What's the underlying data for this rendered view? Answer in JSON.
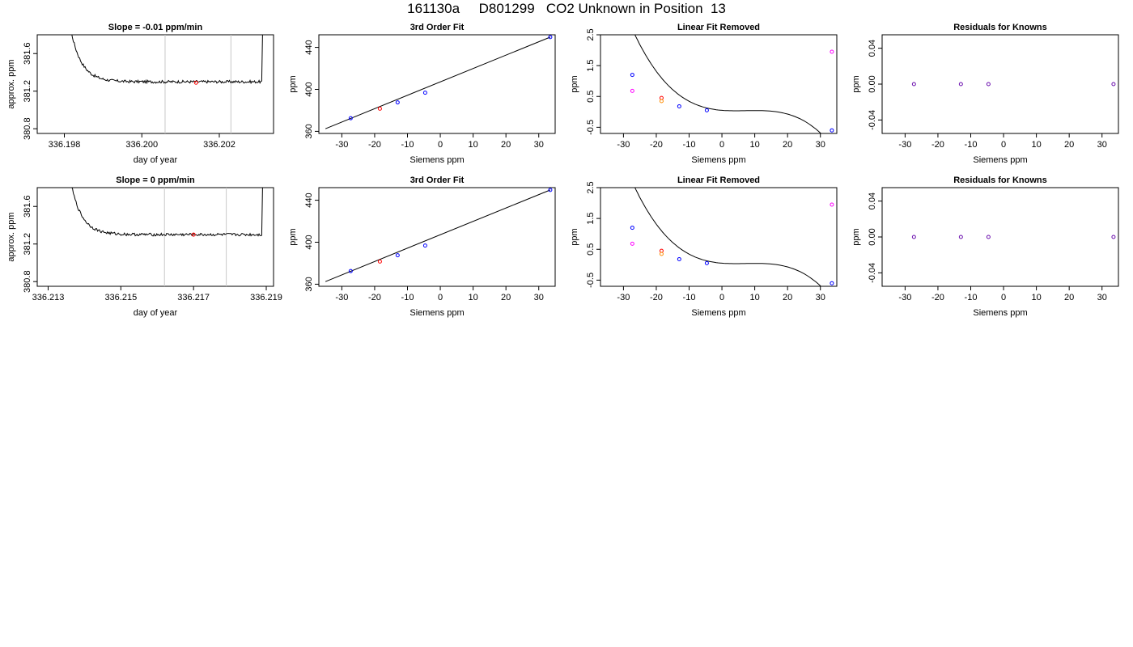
{
  "page": {
    "title": "161130a     D801299   CO2 Unknown in Position  13"
  },
  "chart_data": [
    {
      "type": "line",
      "title": "Slope =  -0.01  ppm/min",
      "xlabel": "day of year",
      "ylabel": "approx. ppm",
      "xlim": [
        336.1973,
        336.2034
      ],
      "ylim": [
        380.75,
        381.8
      ],
      "x_ticks": [
        "336.198",
        "336.200",
        "336.202"
      ],
      "y_ticks": [
        "380.8",
        "381.2",
        "381.6"
      ],
      "vlines": [
        336.2006,
        336.2023
      ],
      "marker": {
        "x": 336.2014,
        "y": 381.29,
        "color": "#ff0000"
      }
    },
    {
      "type": "scatter",
      "title": "3rd Order Fit",
      "xlabel": "Siemens ppm",
      "ylabel": "ppm",
      "xlim": [
        -37,
        35
      ],
      "ylim": [
        358,
        452
      ],
      "x_ticks": [
        "-30",
        "-20",
        "-10",
        "0",
        "10",
        "20",
        "30"
      ],
      "y_ticks": [
        "360",
        "400",
        "440"
      ],
      "points": [
        {
          "x": -27.3,
          "y": 372.5,
          "color": "#0000ff"
        },
        {
          "x": -18.4,
          "y": 381.6,
          "color": "#ff0000"
        },
        {
          "x": -13.0,
          "y": 387.6,
          "color": "#0000ff"
        },
        {
          "x": -4.6,
          "y": 396.8,
          "color": "#0000ff"
        },
        {
          "x": 33.5,
          "y": 449.8,
          "color": "#0000ff"
        }
      ],
      "fit_line": [
        [
          -35,
          362.5
        ],
        [
          33.5,
          449.8
        ]
      ]
    },
    {
      "type": "scatter",
      "title": "Linear Fit Removed",
      "xlabel": "Siemens ppm",
      "ylabel": "ppm",
      "xlim": [
        -37,
        35
      ],
      "ylim": [
        -0.7,
        2.5
      ],
      "x_ticks": [
        "-30",
        "-20",
        "-10",
        "0",
        "10",
        "20",
        "30"
      ],
      "y_ticks": [
        "-0.5",
        "0.5",
        "1.5",
        "2.5"
      ],
      "points": [
        {
          "x": -27.3,
          "y": 1.2,
          "color": "#0000ff"
        },
        {
          "x": -27.3,
          "y": 0.68,
          "color": "#ff00ff"
        },
        {
          "x": -18.4,
          "y": 0.45,
          "color": "#ff0000"
        },
        {
          "x": -18.4,
          "y": 0.35,
          "color": "#ff8c00"
        },
        {
          "x": -13.0,
          "y": 0.18,
          "color": "#0000ff"
        },
        {
          "x": -4.6,
          "y": 0.05,
          "color": "#0000ff"
        },
        {
          "x": 33.5,
          "y": 1.95,
          "color": "#ff00ff"
        },
        {
          "x": 33.5,
          "y": -0.6,
          "color": "#0000ff"
        }
      ]
    },
    {
      "type": "scatter",
      "title": "Residuals for Knowns",
      "xlabel": "Siemens ppm",
      "ylabel": "ppm",
      "xlim": [
        -37,
        35
      ],
      "ylim": [
        -0.055,
        0.055
      ],
      "x_ticks": [
        "-30",
        "-20",
        "-10",
        "0",
        "10",
        "20",
        "30"
      ],
      "y_ticks": [
        "-0.04",
        "0.00",
        "0.04"
      ],
      "points": [
        {
          "x": -27.3,
          "y": 0.0,
          "color": "#6a0dad"
        },
        {
          "x": -13.0,
          "y": 0.0,
          "color": "#6a0dad"
        },
        {
          "x": -4.6,
          "y": 0.0,
          "color": "#6a0dad"
        },
        {
          "x": 33.5,
          "y": 0.0,
          "color": "#6a0dad"
        }
      ]
    },
    {
      "type": "line",
      "title": "Slope =  0  ppm/min",
      "xlabel": "day of year",
      "ylabel": "approx. ppm",
      "xlim": [
        336.2127,
        336.2192
      ],
      "ylim": [
        380.75,
        381.8
      ],
      "x_ticks": [
        "336.213",
        "336.215",
        "336.217",
        "336.219"
      ],
      "y_ticks": [
        "380.8",
        "381.2",
        "381.6"
      ],
      "vlines": [
        336.2162,
        336.2179
      ],
      "marker": {
        "x": 336.217,
        "y": 381.3,
        "color": "#ff0000"
      }
    },
    {
      "type": "scatter",
      "title": "3rd Order Fit",
      "xlabel": "Siemens ppm",
      "ylabel": "ppm",
      "xlim": [
        -37,
        35
      ],
      "ylim": [
        358,
        452
      ],
      "x_ticks": [
        "-30",
        "-20",
        "-10",
        "0",
        "10",
        "20",
        "30"
      ],
      "y_ticks": [
        "360",
        "400",
        "440"
      ],
      "points": [
        {
          "x": -27.3,
          "y": 372.5,
          "color": "#0000ff"
        },
        {
          "x": -18.4,
          "y": 381.6,
          "color": "#ff0000"
        },
        {
          "x": -13.0,
          "y": 387.6,
          "color": "#0000ff"
        },
        {
          "x": -4.6,
          "y": 396.8,
          "color": "#0000ff"
        },
        {
          "x": 33.5,
          "y": 449.8,
          "color": "#0000ff"
        }
      ],
      "fit_line": [
        [
          -35,
          362.5
        ],
        [
          33.5,
          449.8
        ]
      ]
    },
    {
      "type": "scatter",
      "title": "Linear Fit Removed",
      "xlabel": "Siemens ppm",
      "ylabel": "ppm",
      "xlim": [
        -37,
        35
      ],
      "ylim": [
        -0.7,
        2.5
      ],
      "x_ticks": [
        "-30",
        "-20",
        "-10",
        "0",
        "10",
        "20",
        "30"
      ],
      "y_ticks": [
        "-0.5",
        "0.5",
        "1.5",
        "2.5"
      ],
      "points": [
        {
          "x": -27.3,
          "y": 1.2,
          "color": "#0000ff"
        },
        {
          "x": -27.3,
          "y": 0.68,
          "color": "#ff00ff"
        },
        {
          "x": -18.4,
          "y": 0.45,
          "color": "#ff0000"
        },
        {
          "x": -18.4,
          "y": 0.35,
          "color": "#ff8c00"
        },
        {
          "x": -13.0,
          "y": 0.18,
          "color": "#0000ff"
        },
        {
          "x": -4.6,
          "y": 0.05,
          "color": "#0000ff"
        },
        {
          "x": 33.5,
          "y": 1.95,
          "color": "#ff00ff"
        },
        {
          "x": 33.5,
          "y": -0.6,
          "color": "#0000ff"
        }
      ]
    },
    {
      "type": "scatter",
      "title": "Residuals for Knowns",
      "xlabel": "Siemens ppm",
      "ylabel": "ppm",
      "xlim": [
        -37,
        35
      ],
      "ylim": [
        -0.055,
        0.055
      ],
      "x_ticks": [
        "-30",
        "-20",
        "-10",
        "0",
        "10",
        "20",
        "30"
      ],
      "y_ticks": [
        "-0.04",
        "0.00",
        "0.04"
      ],
      "points": [
        {
          "x": -27.3,
          "y": 0.0,
          "color": "#6a0dad"
        },
        {
          "x": -13.0,
          "y": 0.0,
          "color": "#6a0dad"
        },
        {
          "x": -4.6,
          "y": 0.0,
          "color": "#6a0dad"
        },
        {
          "x": 33.5,
          "y": 0.0,
          "color": "#6a0dad"
        }
      ]
    }
  ]
}
